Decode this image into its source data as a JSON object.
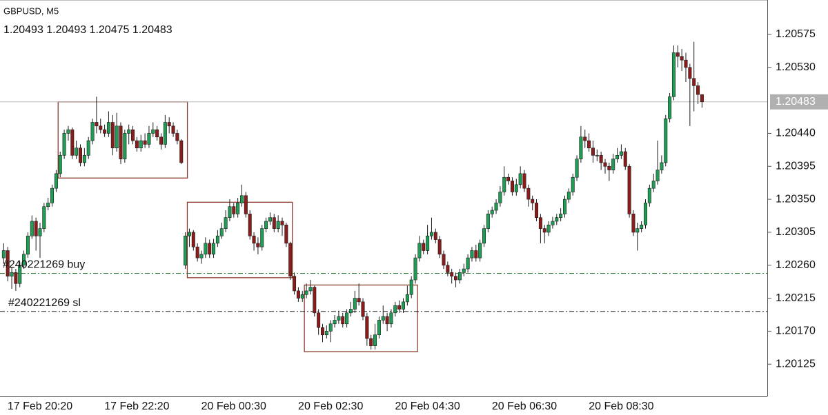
{
  "chart_data": {
    "type": "candlestick",
    "title": "GBPUSD, M5",
    "ohlc_label": "1.20493 1.20493 1.20475 1.20483",
    "current_price": 1.20483,
    "up_color": "#1f9d55",
    "down_color": "#8b1c1c",
    "outline_color": "#1a1a1a",
    "ylim": [
      1.20081,
      1.20622
    ],
    "yticks": [
      1.20575,
      {
        "value": 1.2053,
        "label": "1.20530"
      },
      {
        "value": 1.2044,
        "label": "1.20440"
      },
      1.20395,
      {
        "value": 1.2035,
        "label": "1.20350"
      },
      1.20305,
      {
        "value": 1.2026,
        "label": "1.20260"
      },
      1.20215,
      {
        "value": 1.2017,
        "label": "1.20170"
      },
      1.20125
    ],
    "levels": [
      {
        "label": "#240221269 buy",
        "value": 1.20249,
        "color": "#2e7d32"
      },
      {
        "label": "#240221269 sl",
        "value": 1.20197,
        "color": "#222222"
      }
    ],
    "rectangles": [
      {
        "from": 14,
        "to": 45,
        "high": 1.20483,
        "low": 1.20379,
        "color": "#8b3a2a"
      },
      {
        "from": 46,
        "to": 71,
        "high": 1.20346,
        "low": 1.20243,
        "color": "#8b3a2a"
      },
      {
        "from": 75,
        "to": 102,
        "high": 1.20233,
        "low": 1.20142,
        "color": "#8b3a2a"
      }
    ],
    "categories": [
      null,
      null,
      null,
      null,
      null,
      null,
      null,
      null,
      null,
      "17 Feb 20:20",
      null,
      null,
      null,
      null,
      null,
      null,
      null,
      null,
      null,
      null,
      null,
      null,
      null,
      null,
      null,
      null,
      null,
      null,
      null,
      null,
      null,
      null,
      null,
      "17 Feb 22:20",
      null,
      null,
      null,
      null,
      null,
      null,
      null,
      null,
      null,
      null,
      null,
      null,
      null,
      null,
      null,
      null,
      null,
      null,
      null,
      null,
      null,
      null,
      null,
      "20 Feb 00:30",
      null,
      null,
      null,
      null,
      null,
      null,
      null,
      null,
      null,
      null,
      null,
      null,
      null,
      null,
      null,
      null,
      null,
      null,
      null,
      null,
      null,
      null,
      null,
      "20 Feb 02:30",
      null,
      null,
      null,
      null,
      null,
      null,
      null,
      null,
      null,
      null,
      null,
      null,
      null,
      null,
      null,
      null,
      null,
      null,
      null,
      null,
      null,
      null,
      null,
      "20 Feb 04:30",
      null,
      null,
      null,
      null,
      null,
      null,
      null,
      null,
      null,
      null,
      null,
      null,
      null,
      null,
      null,
      null,
      null,
      null,
      null,
      null,
      null,
      null,
      null,
      "20 Feb 06:30",
      null,
      null,
      null,
      null,
      null,
      null,
      null,
      null,
      null,
      null,
      null,
      null,
      null,
      null,
      null,
      null,
      null,
      null,
      null,
      null,
      null,
      null,
      null,
      "20 Feb 08:30",
      null,
      null,
      null,
      null,
      null,
      null,
      null,
      null,
      null,
      null,
      null,
      null,
      null,
      null,
      null,
      null,
      null,
      null,
      null,
      null
    ],
    "candles": [
      [
        1.2027,
        1.2029,
        1.20262,
        1.2028
      ],
      [
        1.2028,
        1.20285,
        1.20238,
        1.20245
      ],
      [
        1.20245,
        1.20258,
        1.20228,
        1.2025
      ],
      [
        1.2025,
        1.20255,
        1.20225,
        1.20235
      ],
      [
        1.20235,
        1.20265,
        1.2023,
        1.2026
      ],
      [
        1.2026,
        1.2028,
        1.20255,
        1.20275
      ],
      [
        1.20275,
        1.20305,
        1.2027,
        1.203
      ],
      [
        1.203,
        1.20328,
        1.20296,
        1.2032
      ],
      [
        1.2032,
        1.20325,
        1.2028,
        1.203
      ],
      [
        1.203,
        1.20318,
        1.2027,
        1.2031
      ],
      [
        1.2031,
        1.20345,
        1.20305,
        1.2034
      ],
      [
        1.2034,
        1.20352,
        1.20335,
        1.20345
      ],
      [
        1.20345,
        1.2037,
        1.2034,
        1.20365
      ],
      [
        1.20365,
        1.2039,
        1.2036,
        1.20385
      ],
      [
        1.20385,
        1.20415,
        1.2038,
        1.2041
      ],
      [
        1.2041,
        1.20445,
        1.20405,
        1.2044
      ],
      [
        1.2044,
        1.2045,
        1.2043,
        1.20445
      ],
      [
        1.20445,
        1.20448,
        1.20405,
        1.2041
      ],
      [
        1.2041,
        1.2043,
        1.20405,
        1.2042
      ],
      [
        1.2042,
        1.20425,
        1.20395,
        1.204
      ],
      [
        1.204,
        1.2042,
        1.20395,
        1.2041
      ],
      [
        1.2041,
        1.20435,
        1.20405,
        1.2043
      ],
      [
        1.2043,
        1.2046,
        1.20425,
        1.20455
      ],
      [
        1.20455,
        1.2049,
        1.2044,
        1.2045
      ],
      [
        1.2045,
        1.2046,
        1.2044,
        1.20445
      ],
      [
        1.20445,
        1.20452,
        1.20435,
        1.2044
      ],
      [
        1.2044,
        1.2047,
        1.20435,
        1.20455
      ],
      [
        1.20455,
        1.20465,
        1.2041,
        1.2042
      ],
      [
        1.2042,
        1.20468,
        1.20415,
        1.2045
      ],
      [
        1.2045,
        1.20455,
        1.20398,
        1.20405
      ],
      [
        1.20405,
        1.20445,
        1.204,
        1.2044
      ],
      [
        1.2044,
        1.20452,
        1.20425,
        1.20445
      ],
      [
        1.20445,
        1.2045,
        1.20425,
        1.2043
      ],
      [
        1.2043,
        1.20435,
        1.20415,
        1.2042
      ],
      [
        1.2042,
        1.20438,
        1.20415,
        1.2043
      ],
      [
        1.2043,
        1.2044,
        1.2042,
        1.20425
      ],
      [
        1.20425,
        1.2045,
        1.2042,
        1.2044
      ],
      [
        1.2044,
        1.20455,
        1.20435,
        1.20445
      ],
      [
        1.20445,
        1.2045,
        1.2043,
        1.20435
      ],
      [
        1.20435,
        1.2044,
        1.20418,
        1.20425
      ],
      [
        1.20425,
        1.20465,
        1.2042,
        1.20455
      ],
      [
        1.20455,
        1.20462,
        1.2044,
        1.2045
      ],
      [
        1.2045,
        1.20455,
        1.20435,
        1.2044
      ],
      [
        1.2044,
        1.20445,
        1.20425,
        1.2043
      ],
      [
        1.2043,
        1.20432,
        1.20398,
        1.204
      ],
      [
        1.2026,
        1.20305,
        1.20255,
        1.203
      ],
      [
        1.203,
        1.2031,
        1.20285,
        1.20305
      ],
      [
        1.20305,
        1.20308,
        1.2028,
        1.20285
      ],
      [
        1.20285,
        1.2029,
        1.20265,
        1.2027
      ],
      [
        1.2027,
        1.2028,
        1.20262,
        1.20275
      ],
      [
        1.20275,
        1.20298,
        1.2027,
        1.2029
      ],
      [
        1.2029,
        1.20295,
        1.2027,
        1.20275
      ],
      [
        1.20275,
        1.20296,
        1.2027,
        1.2029
      ],
      [
        1.2029,
        1.20308,
        1.20285,
        1.203
      ],
      [
        1.203,
        1.20318,
        1.20296,
        1.2031
      ],
      [
        1.2031,
        1.20335,
        1.20305,
        1.20325
      ],
      [
        1.20325,
        1.2035,
        1.2032,
        1.2034
      ],
      [
        1.2034,
        1.20345,
        1.20325,
        1.2033
      ],
      [
        1.2033,
        1.20352,
        1.20325,
        1.20345
      ],
      [
        1.20345,
        1.2037,
        1.2034,
        1.20355
      ],
      [
        1.20355,
        1.2036,
        1.20325,
        1.2033
      ],
      [
        1.2033,
        1.20335,
        1.20295,
        1.203
      ],
      [
        1.203,
        1.20305,
        1.2028,
        1.2029
      ],
      [
        1.2029,
        1.20298,
        1.20275,
        1.20285
      ],
      [
        1.20285,
        1.20315,
        1.2028,
        1.2031
      ],
      [
        1.2031,
        1.20325,
        1.20305,
        1.2032
      ],
      [
        1.2032,
        1.20332,
        1.20315,
        1.20325
      ],
      [
        1.20325,
        1.2033,
        1.20305,
        1.2031
      ],
      [
        1.2031,
        1.20328,
        1.20305,
        1.2032
      ],
      [
        1.2032,
        1.20325,
        1.203,
        1.20315
      ],
      [
        1.20315,
        1.20318,
        1.20285,
        1.2029
      ],
      [
        1.2029,
        1.20292,
        1.2024,
        1.20245
      ],
      [
        1.20245,
        1.2025,
        1.2022,
        1.20225
      ],
      [
        1.20225,
        1.2023,
        1.2021,
        1.20215
      ],
      [
        1.20215,
        1.20225,
        1.2021,
        1.2022
      ],
      [
        1.2022,
        1.20235,
        1.20215,
        1.20225
      ],
      [
        1.20225,
        1.2024,
        1.2022,
        1.2023
      ],
      [
        1.2023,
        1.20232,
        1.2019,
        1.20195
      ],
      [
        1.20195,
        1.202,
        1.20165,
        1.20175
      ],
      [
        1.20175,
        1.2018,
        1.20155,
        1.20165
      ],
      [
        1.20165,
        1.20178,
        1.2016,
        1.2017
      ],
      [
        1.2017,
        1.20185,
        1.20155,
        1.2018
      ],
      [
        1.2018,
        1.20192,
        1.20175,
        1.20185
      ],
      [
        1.20185,
        1.20198,
        1.2018,
        1.2019
      ],
      [
        1.2019,
        1.20195,
        1.20175,
        1.2018
      ],
      [
        1.2018,
        1.202,
        1.20175,
        1.20195
      ],
      [
        1.20195,
        1.2021,
        1.2019,
        1.202
      ],
      [
        1.202,
        1.20225,
        1.20195,
        1.20215
      ],
      [
        1.20215,
        1.20235,
        1.20205,
        1.2021
      ],
      [
        1.2021,
        1.20215,
        1.20185,
        1.2019
      ],
      [
        1.2019,
        1.20195,
        1.2015,
        1.2016
      ],
      [
        1.2016,
        1.20165,
        1.20145,
        1.2015
      ],
      [
        1.2015,
        1.2018,
        1.20145,
        1.20165
      ],
      [
        1.20165,
        1.2019,
        1.2016,
        1.20185
      ],
      [
        1.20185,
        1.20205,
        1.2018,
        1.2019
      ],
      [
        1.2019,
        1.20195,
        1.2017,
        1.2018
      ],
      [
        1.2018,
        1.202,
        1.20175,
        1.20195
      ],
      [
        1.20195,
        1.2021,
        1.2019,
        1.20205
      ],
      [
        1.20205,
        1.20212,
        1.20195,
        1.202
      ],
      [
        1.202,
        1.20215,
        1.20195,
        1.2021
      ],
      [
        1.2021,
        1.20232,
        1.20205,
        1.2022
      ],
      [
        1.2022,
        1.20245,
        1.20215,
        1.2024
      ],
      [
        1.2024,
        1.20275,
        1.20235,
        1.2027
      ],
      [
        1.2027,
        1.203,
        1.20265,
        1.2029
      ],
      [
        1.2029,
        1.20295,
        1.20275,
        1.2028
      ],
      [
        1.2028,
        1.20315,
        1.20275,
        1.203
      ],
      [
        1.203,
        1.20325,
        1.20295,
        1.20305
      ],
      [
        1.20305,
        1.2031,
        1.2029,
        1.20295
      ],
      [
        1.20295,
        1.203,
        1.2027,
        1.20275
      ],
      [
        1.20275,
        1.2028,
        1.20255,
        1.2026
      ],
      [
        1.2026,
        1.20265,
        1.20245,
        1.2025
      ],
      [
        1.2025,
        1.20255,
        1.20235,
        1.20245
      ],
      [
        1.20245,
        1.2025,
        1.2023,
        1.2024
      ],
      [
        1.2024,
        1.20255,
        1.20235,
        1.2025
      ],
      [
        1.2025,
        1.20262,
        1.20245,
        1.20255
      ],
      [
        1.20255,
        1.20275,
        1.2025,
        1.2027
      ],
      [
        1.2027,
        1.20285,
        1.20265,
        1.2028
      ],
      [
        1.2028,
        1.20288,
        1.20265,
        1.2027
      ],
      [
        1.2027,
        1.20295,
        1.20265,
        1.2029
      ],
      [
        1.2029,
        1.20315,
        1.20285,
        1.2031
      ],
      [
        1.2031,
        1.20335,
        1.20305,
        1.2033
      ],
      [
        1.2033,
        1.2034,
        1.20325,
        1.20335
      ],
      [
        1.20335,
        1.2035,
        1.2033,
        1.20345
      ],
      [
        1.20345,
        1.20368,
        1.2034,
        1.2036
      ],
      [
        1.2036,
        1.20395,
        1.20355,
        1.2038
      ],
      [
        1.2038,
        1.20385,
        1.2037,
        1.20375
      ],
      [
        1.20375,
        1.2038,
        1.20355,
        1.2036
      ],
      [
        1.2036,
        1.20378,
        1.20355,
        1.2037
      ],
      [
        1.2037,
        1.20395,
        1.20365,
        1.20385
      ],
      [
        1.20385,
        1.2039,
        1.2036,
        1.20365
      ],
      [
        1.20365,
        1.2037,
        1.2034,
        1.2035
      ],
      [
        1.2035,
        1.20355,
        1.20335,
        1.20345
      ],
      [
        1.20345,
        1.2035,
        1.2032,
        1.20325
      ],
      [
        1.20325,
        1.2033,
        1.2029,
        1.2031
      ],
      [
        1.2031,
        1.20315,
        1.2029,
        1.20305
      ],
      [
        1.20305,
        1.2032,
        1.203,
        1.20315
      ],
      [
        1.20315,
        1.20326,
        1.2031,
        1.2032
      ],
      [
        1.2032,
        1.2033,
        1.20315,
        1.20325
      ],
      [
        1.20325,
        1.20338,
        1.2032,
        1.2033
      ],
      [
        1.2033,
        1.20355,
        1.20325,
        1.2035
      ],
      [
        1.2035,
        1.20365,
        1.20345,
        1.2036
      ],
      [
        1.2036,
        1.20385,
        1.20355,
        1.2038
      ],
      [
        1.2038,
        1.2041,
        1.20375,
        1.20405
      ],
      [
        1.20405,
        1.2045,
        1.204,
        1.20435
      ],
      [
        1.20435,
        1.20445,
        1.2042,
        1.2043
      ],
      [
        1.2043,
        1.2044,
        1.20415,
        1.2042
      ],
      [
        1.2042,
        1.2043,
        1.204,
        1.2041
      ],
      [
        1.2041,
        1.20418,
        1.20402,
        1.2041
      ],
      [
        1.2041,
        1.20415,
        1.2039,
        1.204
      ],
      [
        1.204,
        1.20405,
        1.20385,
        1.20395
      ],
      [
        1.20395,
        1.204,
        1.20375,
        1.2039
      ],
      [
        1.2039,
        1.20412,
        1.20385,
        1.20405
      ],
      [
        1.20405,
        1.2042,
        1.204,
        1.2041
      ],
      [
        1.2041,
        1.20425,
        1.20405,
        1.20415
      ],
      [
        1.20415,
        1.2042,
        1.2039,
        1.20395
      ],
      [
        1.20395,
        1.20398,
        1.20325,
        1.2033
      ],
      [
        1.2033,
        1.20335,
        1.203,
        1.20305
      ],
      [
        1.20305,
        1.20318,
        1.2028,
        1.2031
      ],
      [
        1.2031,
        1.2032,
        1.20305,
        1.20315
      ],
      [
        1.20315,
        1.2035,
        1.2031,
        1.20345
      ],
      [
        1.20345,
        1.2037,
        1.2034,
        1.20365
      ],
      [
        1.20365,
        1.20385,
        1.2036,
        1.20375
      ],
      [
        1.20375,
        1.2043,
        1.2037,
        1.2039
      ],
      [
        1.2039,
        1.2041,
        1.20385,
        1.204
      ],
      [
        1.204,
        1.20465,
        1.20395,
        1.2046
      ],
      [
        1.2046,
        1.20495,
        1.20455,
        1.2049
      ],
      [
        1.2049,
        1.2056,
        1.20485,
        1.2055
      ],
      [
        1.2055,
        1.2056,
        1.2053,
        1.20545
      ],
      [
        1.20545,
        1.20555,
        1.20525,
        1.2054
      ],
      [
        1.2054,
        1.2055,
        1.2051,
        1.2053
      ],
      [
        1.2053,
        1.20535,
        1.2045,
        1.20515
      ],
      [
        1.20515,
        1.20565,
        1.2047,
        1.20505
      ],
      [
        1.20505,
        1.2051,
        1.2048,
        1.20493
      ],
      [
        1.20493,
        1.20493,
        1.20475,
        1.20483
      ]
    ]
  }
}
